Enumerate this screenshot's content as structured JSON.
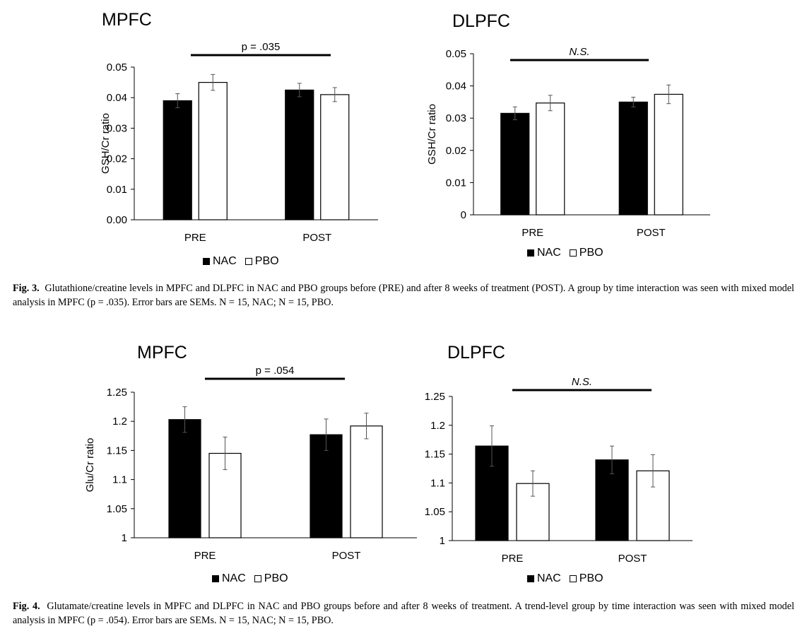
{
  "figures": [
    {
      "label": "Fig. 3.",
      "caption": "Glutathione/creatine levels in MPFC and DLPFC in NAC and PBO groups before (PRE) and after 8 weeks of treatment (POST). A group by time interaction was seen with mixed model analysis in MPFC (p = .035). Error bars are SEMs. N = 15, NAC; N = 15, PBO."
    },
    {
      "label": "Fig. 4.",
      "caption": "Glutamate/creatine levels in MPFC and DLPFC in NAC and PBO groups before and after 8 weeks of treatment. A trend-level group by time interaction was seen with mixed model analysis in MPFC (p = .054). Error bars are SEMs. N = 15, NAC; N = 15, PBO."
    }
  ],
  "legend": {
    "nac_label": "NAC",
    "pbo_label": "PBO",
    "nac_color": "#000000",
    "pbo_color": "#ffffff"
  },
  "chart_data": [
    {
      "type": "bar",
      "title": "MPFC",
      "ylabel": "GSH/Cr ratio",
      "xlabel": "",
      "categories": [
        "PRE",
        "POST"
      ],
      "ylim": [
        0,
        0.05
      ],
      "yticks": [
        "0.00",
        "0.01",
        "0.02",
        "0.03",
        "0.04",
        "0.05"
      ],
      "series": [
        {
          "name": "NAC",
          "values": [
            0.039,
            0.0425
          ],
          "errors": [
            0.0023,
            0.0022
          ]
        },
        {
          "name": "PBO",
          "values": [
            0.045,
            0.041
          ],
          "errors": [
            0.0026,
            0.0023
          ]
        }
      ],
      "annotation": {
        "text": "p = .035",
        "italic": false
      },
      "grid": false,
      "legend_position": "bottom"
    },
    {
      "type": "bar",
      "title": "DLPFC",
      "ylabel": "GSH/Cr ratio",
      "xlabel": "",
      "categories": [
        "PRE",
        "POST"
      ],
      "ylim": [
        0,
        0.05
      ],
      "yticks": [
        "0",
        "0.01",
        "0.02",
        "0.03",
        "0.04",
        "0.05"
      ],
      "series": [
        {
          "name": "NAC",
          "values": [
            0.0315,
            0.035
          ],
          "errors": [
            0.002,
            0.0015
          ]
        },
        {
          "name": "PBO",
          "values": [
            0.0347,
            0.0374
          ],
          "errors": [
            0.0024,
            0.0029
          ]
        }
      ],
      "annotation": {
        "text": "N.S.",
        "italic": true
      },
      "grid": false,
      "legend_position": "bottom"
    },
    {
      "type": "bar",
      "title": "MPFC",
      "ylabel": "Glu/Cr ratio",
      "xlabel": "",
      "categories": [
        "PRE",
        "POST"
      ],
      "ylim": [
        1,
        1.25
      ],
      "yticks": [
        "1",
        "1.05",
        "1.1",
        "1.15",
        "1.2",
        "1.25"
      ],
      "series": [
        {
          "name": "NAC",
          "values": [
            1.203,
            1.177
          ],
          "errors": [
            0.022,
            0.027
          ]
        },
        {
          "name": "PBO",
          "values": [
            1.145,
            1.192
          ],
          "errors": [
            0.028,
            0.022
          ]
        }
      ],
      "annotation": {
        "text": "p = .054",
        "italic": false
      },
      "grid": false,
      "legend_position": "bottom"
    },
    {
      "type": "bar",
      "title": "DLPFC",
      "ylabel": "",
      "xlabel": "",
      "categories": [
        "PRE",
        "POST"
      ],
      "ylim": [
        1,
        1.25
      ],
      "yticks": [
        "1",
        "1.05",
        "1.1",
        "1.15",
        "1.2",
        "1.25"
      ],
      "series": [
        {
          "name": "NAC",
          "values": [
            1.164,
            1.14
          ],
          "errors": [
            0.035,
            0.024
          ]
        },
        {
          "name": "PBO",
          "values": [
            1.099,
            1.121
          ],
          "errors": [
            0.022,
            0.028
          ]
        }
      ],
      "annotation": {
        "text": "N.S.",
        "italic": true
      },
      "grid": false,
      "legend_position": "bottom"
    }
  ]
}
